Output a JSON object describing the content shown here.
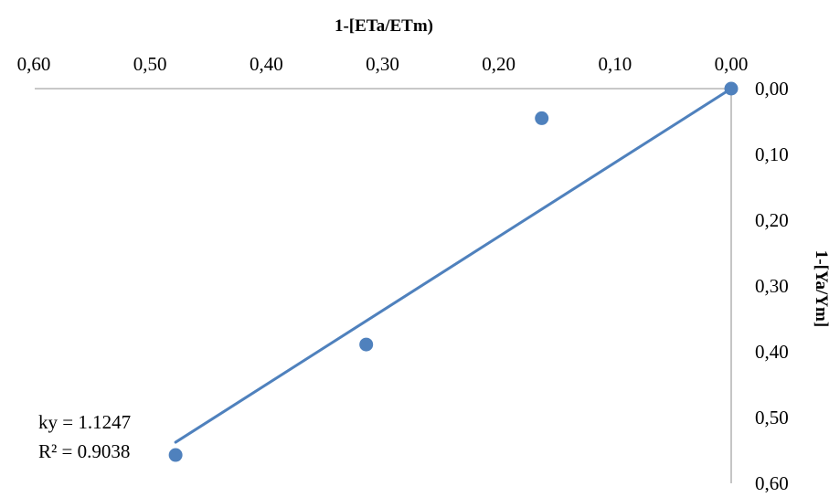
{
  "chart_data": {
    "type": "scatter",
    "title": "",
    "xlabel": "1-[ETa/ETm)",
    "ylabel": "1-[Ya/Ym]",
    "x_axis": {
      "position": "top",
      "reversed": true,
      "range": [
        0,
        0.6
      ],
      "ticks": [
        "0,60",
        "0,50",
        "0,40",
        "0,30",
        "0,20",
        "0,10",
        "0,00"
      ],
      "tick_values": [
        0.6,
        0.5,
        0.4,
        0.3,
        0.2,
        0.1,
        0.0
      ]
    },
    "y_axis": {
      "position": "right",
      "reversed": true,
      "range": [
        0,
        0.6
      ],
      "ticks": [
        "0,00",
        "0,10",
        "0,20",
        "0,30",
        "0,40",
        "0,50",
        "0,60"
      ],
      "tick_values": [
        0.0,
        0.1,
        0.2,
        0.3,
        0.4,
        0.5,
        0.6
      ]
    },
    "grid": false,
    "legend": "none",
    "series": [
      {
        "points": [
          {
            "x": 0.0,
            "y": 0.0
          },
          {
            "x": 0.163,
            "y": 0.045
          },
          {
            "x": 0.314,
            "y": 0.389
          },
          {
            "x": 0.478,
            "y": 0.557
          }
        ],
        "color": "#4f81bd"
      }
    ],
    "trendline": {
      "type": "linear",
      "slope": 1.1247,
      "intercept": 0,
      "x_range": [
        0.0,
        0.478
      ],
      "color": "#4f81bd"
    },
    "annotations": [
      {
        "text": "ky = 1.1247"
      },
      {
        "text": "R² = 0.9038"
      }
    ],
    "colors": {
      "axis": "#a6a6a6",
      "marker": "#4f81bd",
      "text": "#000000"
    }
  }
}
